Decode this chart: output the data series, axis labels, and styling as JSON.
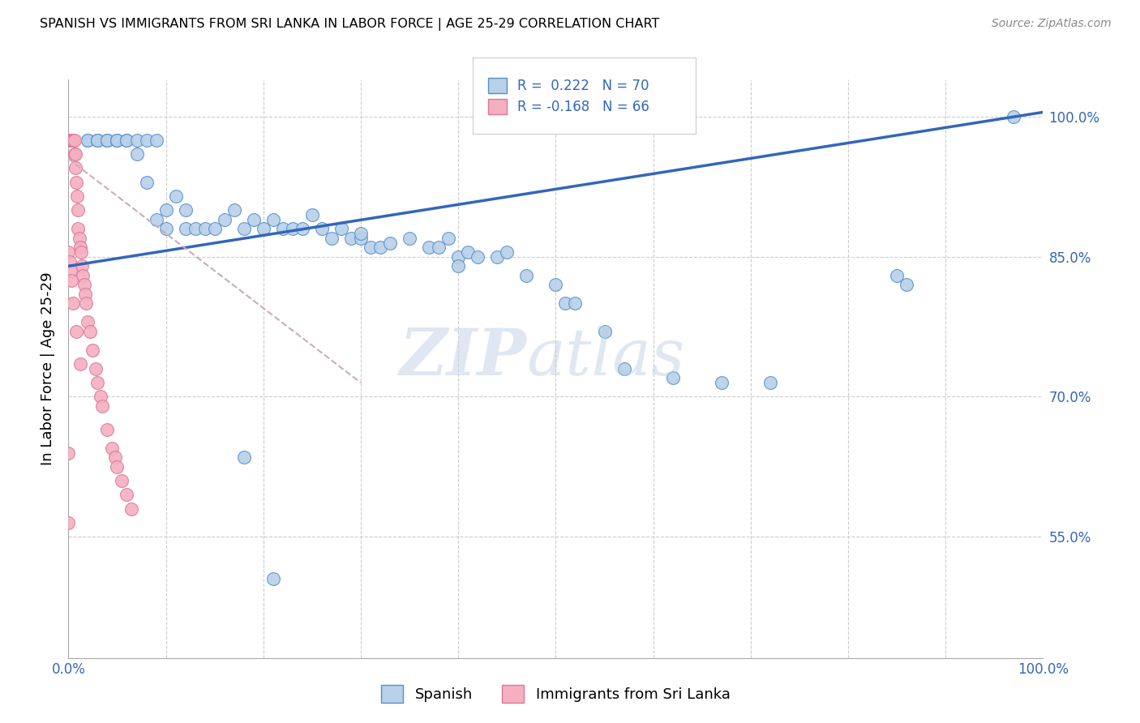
{
  "title": "SPANISH VS IMMIGRANTS FROM SRI LANKA IN LABOR FORCE | AGE 25-29 CORRELATION CHART",
  "source": "Source: ZipAtlas.com",
  "ylabel": "In Labor Force | Age 25-29",
  "legend_label1": "Spanish",
  "legend_label2": "Immigrants from Sri Lanka",
  "r1": 0.222,
  "n1": 70,
  "r2": -0.168,
  "n2": 66,
  "color_blue_fill": "#b8d0e8",
  "color_blue_edge": "#5590cc",
  "color_pink_fill": "#f4b0c0",
  "color_pink_edge": "#dd7799",
  "color_blue_line": "#3366bb",
  "color_pink_line": "#ccaabb",
  "xlim": [
    0.0,
    1.0
  ],
  "ylim": [
    0.42,
    1.04
  ],
  "yticks": [
    0.55,
    0.7,
    0.85,
    1.0
  ],
  "ytick_labels": [
    "55.0%",
    "70.0%",
    "85.0%",
    "100.0%"
  ],
  "blue_x": [
    0.02,
    0.02,
    0.03,
    0.03,
    0.03,
    0.04,
    0.04,
    0.04,
    0.05,
    0.05,
    0.05,
    0.06,
    0.06,
    0.07,
    0.07,
    0.08,
    0.08,
    0.09,
    0.09,
    0.1,
    0.1,
    0.11,
    0.12,
    0.12,
    0.13,
    0.14,
    0.15,
    0.16,
    0.17,
    0.18,
    0.19,
    0.2,
    0.21,
    0.22,
    0.23,
    0.24,
    0.25,
    0.26,
    0.27,
    0.28,
    0.29,
    0.3,
    0.3,
    0.31,
    0.32,
    0.33,
    0.35,
    0.37,
    0.38,
    0.39,
    0.4,
    0.4,
    0.41,
    0.42,
    0.44,
    0.45,
    0.47,
    0.5,
    0.51,
    0.52,
    0.55,
    0.57,
    0.62,
    0.67,
    0.72,
    0.85,
    0.86,
    0.97,
    0.18,
    0.21
  ],
  "blue_y": [
    0.975,
    0.975,
    0.975,
    0.975,
    0.975,
    0.975,
    0.975,
    0.975,
    0.975,
    0.975,
    0.975,
    0.975,
    0.975,
    0.96,
    0.975,
    0.93,
    0.975,
    0.975,
    0.89,
    0.9,
    0.88,
    0.915,
    0.88,
    0.9,
    0.88,
    0.88,
    0.88,
    0.89,
    0.9,
    0.88,
    0.89,
    0.88,
    0.89,
    0.88,
    0.88,
    0.88,
    0.895,
    0.88,
    0.87,
    0.88,
    0.87,
    0.87,
    0.875,
    0.86,
    0.86,
    0.865,
    0.87,
    0.86,
    0.86,
    0.87,
    0.85,
    0.84,
    0.855,
    0.85,
    0.85,
    0.855,
    0.83,
    0.82,
    0.8,
    0.8,
    0.77,
    0.73,
    0.72,
    0.715,
    0.715,
    0.83,
    0.82,
    1.0,
    0.635,
    0.505
  ],
  "pink_x": [
    0.0,
    0.0,
    0.0,
    0.0,
    0.0,
    0.0,
    0.0,
    0.0,
    0.001,
    0.001,
    0.001,
    0.001,
    0.001,
    0.002,
    0.002,
    0.002,
    0.002,
    0.003,
    0.003,
    0.003,
    0.003,
    0.004,
    0.004,
    0.004,
    0.005,
    0.005,
    0.005,
    0.006,
    0.006,
    0.007,
    0.007,
    0.008,
    0.009,
    0.01,
    0.01,
    0.011,
    0.012,
    0.013,
    0.014,
    0.015,
    0.016,
    0.017,
    0.018,
    0.02,
    0.022,
    0.025,
    0.028,
    0.03,
    0.033,
    0.035,
    0.04,
    0.045,
    0.048,
    0.05,
    0.055,
    0.06,
    0.065,
    0.0,
    0.001,
    0.002,
    0.003,
    0.005,
    0.008,
    0.012,
    0.0,
    0.0
  ],
  "pink_y": [
    0.975,
    0.975,
    0.975,
    0.975,
    0.975,
    0.975,
    0.975,
    0.975,
    0.975,
    0.975,
    0.975,
    0.975,
    0.975,
    0.975,
    0.975,
    0.975,
    0.975,
    0.975,
    0.975,
    0.975,
    0.975,
    0.975,
    0.975,
    0.975,
    0.975,
    0.975,
    0.975,
    0.975,
    0.96,
    0.96,
    0.945,
    0.93,
    0.915,
    0.9,
    0.88,
    0.87,
    0.86,
    0.855,
    0.84,
    0.83,
    0.82,
    0.81,
    0.8,
    0.78,
    0.77,
    0.75,
    0.73,
    0.715,
    0.7,
    0.69,
    0.665,
    0.645,
    0.635,
    0.625,
    0.61,
    0.595,
    0.58,
    0.855,
    0.845,
    0.835,
    0.825,
    0.8,
    0.77,
    0.735,
    0.64,
    0.565
  ],
  "blue_line_x0": 0.0,
  "blue_line_y0": 0.84,
  "blue_line_x1": 1.0,
  "blue_line_y1": 1.005,
  "pink_line_x0": 0.0,
  "pink_line_y0": 0.955,
  "pink_line_x1": 0.3,
  "pink_line_y1": 0.715
}
